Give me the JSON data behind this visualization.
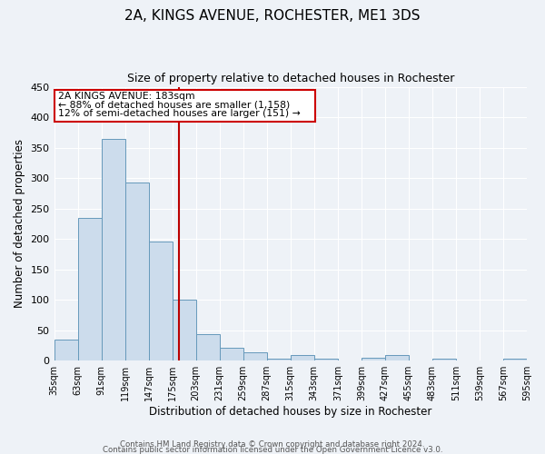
{
  "title": "2A, KINGS AVENUE, ROCHESTER, ME1 3DS",
  "subtitle": "Size of property relative to detached houses in Rochester",
  "xlabel": "Distribution of detached houses by size in Rochester",
  "ylabel": "Number of detached properties",
  "bar_color": "#ccdcec",
  "bar_edge_color": "#6699bb",
  "bins": [
    35,
    63,
    91,
    119,
    147,
    175,
    203,
    231,
    259,
    287,
    315,
    343,
    371,
    399,
    427,
    455,
    483,
    511,
    539,
    567,
    595
  ],
  "values": [
    35,
    234,
    364,
    293,
    196,
    101,
    44,
    21,
    14,
    3,
    10,
    3,
    0,
    5,
    9,
    0,
    3,
    0,
    0,
    3
  ],
  "tick_labels": [
    "35sqm",
    "63sqm",
    "91sqm",
    "119sqm",
    "147sqm",
    "175sqm",
    "203sqm",
    "231sqm",
    "259sqm",
    "287sqm",
    "315sqm",
    "343sqm",
    "371sqm",
    "399sqm",
    "427sqm",
    "455sqm",
    "483sqm",
    "511sqm",
    "539sqm",
    "567sqm",
    "595sqm"
  ],
  "ylim": [
    0,
    450
  ],
  "yticks": [
    0,
    50,
    100,
    150,
    200,
    250,
    300,
    350,
    400,
    450
  ],
  "property_value": 183,
  "vline_color": "#bb0000",
  "annotation_box_color": "#cc0000",
  "annotation_title": "2A KINGS AVENUE: 183sqm",
  "annotation_line1": "← 88% of detached houses are smaller (1,158)",
  "annotation_line2": "12% of semi-detached houses are larger (151) →",
  "footer_line1": "Contains HM Land Registry data © Crown copyright and database right 2024.",
  "footer_line2": "Contains public sector information licensed under the Open Government Licence v3.0.",
  "background_color": "#eef2f7",
  "grid_color": "#ffffff"
}
